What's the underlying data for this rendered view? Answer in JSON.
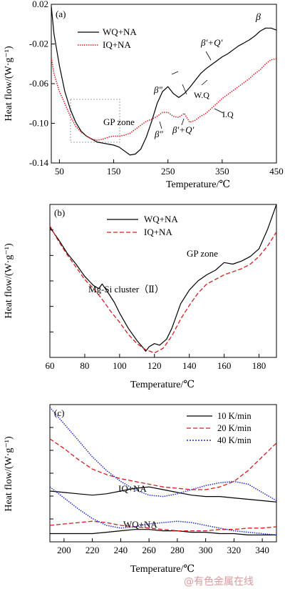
{
  "figure": {
    "watermark": "@有色金属在线"
  },
  "chart_data": [
    {
      "id": "a",
      "panel_label": "(a)",
      "type": "line",
      "xlabel": "Temperature/℃",
      "ylabel": "Heat flow/(W·g⁻¹)",
      "xlim": [
        35,
        450
      ],
      "ylim": [
        -0.14,
        0.02
      ],
      "xticks": [
        50,
        150,
        250,
        350,
        450
      ],
      "yticks": [
        0.02,
        -0.02,
        -0.06,
        -0.1,
        -0.14
      ],
      "ytick_labels": [
        "0.02",
        "-0.02",
        "-0.06",
        "-0.10",
        "-0.14"
      ],
      "legend_position": "top-left",
      "series": [
        {
          "name": "WQ+NA",
          "color": "#000000",
          "dash": "solid",
          "x": [
            35,
            40,
            50,
            60,
            70,
            80,
            90,
            100,
            110,
            120,
            130,
            140,
            150,
            160,
            170,
            180,
            190,
            200,
            210,
            220,
            230,
            240,
            250,
            260,
            270,
            280,
            290,
            300,
            310,
            320,
            330,
            340,
            350,
            360,
            370,
            380,
            390,
            400,
            410,
            420,
            430,
            440,
            450
          ],
          "y": [
            0.018,
            -0.01,
            -0.042,
            -0.068,
            -0.086,
            -0.099,
            -0.108,
            -0.113,
            -0.116,
            -0.119,
            -0.12,
            -0.121,
            -0.122,
            -0.124,
            -0.128,
            -0.132,
            -0.131,
            -0.126,
            -0.114,
            -0.098,
            -0.08,
            -0.068,
            -0.063,
            -0.07,
            -0.074,
            -0.07,
            -0.064,
            -0.057,
            -0.05,
            -0.045,
            -0.041,
            -0.037,
            -0.033,
            -0.03,
            -0.026,
            -0.022,
            -0.019,
            -0.016,
            -0.012,
            -0.007,
            -0.004,
            -0.004,
            -0.006
          ]
        },
        {
          "name": "IQ+NA",
          "color": "#d71d1d",
          "dash": "dotted",
          "x": [
            35,
            40,
            50,
            60,
            70,
            80,
            90,
            100,
            110,
            120,
            130,
            140,
            150,
            160,
            170,
            180,
            190,
            200,
            210,
            220,
            230,
            240,
            250,
            260,
            270,
            280,
            290,
            300,
            310,
            320,
            330,
            340,
            350,
            360,
            370,
            380,
            390,
            400,
            410,
            420,
            430,
            440,
            450
          ],
          "y": [
            -0.034,
            -0.05,
            -0.068,
            -0.08,
            -0.093,
            -0.103,
            -0.109,
            -0.113,
            -0.116,
            -0.117,
            -0.116,
            -0.114,
            -0.113,
            -0.113,
            -0.112,
            -0.11,
            -0.106,
            -0.102,
            -0.098,
            -0.096,
            -0.093,
            -0.089,
            -0.089,
            -0.093,
            -0.094,
            -0.09,
            -0.099,
            -0.097,
            -0.093,
            -0.09,
            -0.085,
            -0.08,
            -0.075,
            -0.071,
            -0.067,
            -0.063,
            -0.059,
            -0.055,
            -0.05,
            -0.046,
            -0.04,
            -0.036,
            -0.035
          ]
        }
      ],
      "annotations": [
        "β",
        "β′+Q′",
        "β″",
        "W.Q",
        "GP zone",
        "I.Q",
        "β″",
        "β′+Q′"
      ]
    },
    {
      "id": "b",
      "panel_label": "(b)",
      "type": "line",
      "xlabel": "Temperature/℃",
      "ylabel": "Heat flow/(W·g⁻¹)",
      "xlim": [
        60,
        190
      ],
      "ylim": [
        0,
        100
      ],
      "xticks": [
        60,
        80,
        100,
        120,
        140,
        160,
        180
      ],
      "yticks_unlabeled": 5,
      "legend_position": "top-left",
      "series": [
        {
          "name": "WQ+NA",
          "color": "#000000",
          "dash": "solid",
          "x": [
            60,
            65,
            70,
            75,
            80,
            85,
            88,
            90,
            93,
            97,
            100,
            105,
            110,
            113,
            115,
            117,
            120,
            123,
            127,
            130,
            135,
            140,
            145,
            150,
            155,
            158,
            160,
            165,
            170,
            175,
            180,
            185,
            190
          ],
          "y": [
            85,
            77,
            68,
            61,
            53,
            47,
            45,
            48,
            43,
            36,
            29,
            19,
            11,
            7,
            4,
            7,
            9,
            8,
            12,
            19,
            35,
            44,
            50,
            54,
            57,
            60,
            62,
            61,
            63,
            66,
            71,
            84,
            100
          ]
        },
        {
          "name": "IQ+NA",
          "color": "#d71d1d",
          "dash": "dashed",
          "x": [
            60,
            65,
            70,
            75,
            80,
            85,
            90,
            95,
            100,
            105,
            110,
            115,
            120,
            125,
            130,
            135,
            140,
            145,
            150,
            155,
            160,
            165,
            170,
            175,
            180,
            185,
            190
          ],
          "y": [
            86,
            76,
            67,
            59,
            51,
            45,
            38,
            30,
            23,
            15,
            9,
            5,
            3,
            6,
            14,
            25,
            34,
            42,
            48,
            51,
            54,
            56,
            58,
            61,
            66,
            73,
            82
          ]
        }
      ],
      "annotations": [
        "GP zone",
        "Mg-Si cluster（Ⅱ）"
      ]
    },
    {
      "id": "c",
      "panel_label": "(c)",
      "type": "line",
      "xlabel": "Temperature/℃",
      "ylabel": "Heat flow/(W·g⁻¹)",
      "xlim": [
        190,
        350
      ],
      "ylim": [
        0,
        100
      ],
      "xticks": [
        200,
        220,
        240,
        260,
        280,
        300,
        320,
        340
      ],
      "yticks_unlabeled": 5,
      "legend_position": "top-right",
      "series": [
        {
          "name": "10 K/min",
          "color": "#000000",
          "dash": "solid",
          "x": [
            190,
            200,
            210,
            220,
            230,
            240,
            250,
            260,
            270,
            280,
            290,
            300,
            310,
            320,
            330,
            340,
            350
          ],
          "y": [
            37,
            36,
            35,
            34,
            35,
            37,
            39,
            40,
            38,
            36,
            34,
            33,
            33,
            32,
            31,
            30,
            29
          ]
        },
        {
          "name": "20 K/min",
          "color": "#d71d1d",
          "dash": "dashed",
          "x": [
            190,
            200,
            210,
            220,
            230,
            240,
            250,
            260,
            270,
            280,
            290,
            300,
            310,
            320,
            330,
            340,
            350
          ],
          "y": [
            75,
            68,
            60,
            53,
            49,
            46,
            44,
            42,
            40,
            39,
            38,
            38,
            40,
            44,
            52,
            62,
            72
          ]
        },
        {
          "name": "40 K/min",
          "color": "#1e2bd0",
          "dash": "dotted",
          "x": [
            190,
            200,
            210,
            220,
            230,
            240,
            250,
            260,
            270,
            280,
            290,
            300,
            310,
            320,
            330,
            340,
            350
          ],
          "y": [
            98,
            86,
            74,
            62,
            52,
            44,
            38,
            34,
            33,
            35,
            38,
            41,
            43,
            44,
            42,
            36,
            30
          ]
        },
        {
          "name": "10 K/min",
          "color": "#000000",
          "dash": "solid",
          "x": [
            190,
            200,
            210,
            220,
            230,
            240,
            250,
            260,
            270,
            280,
            290,
            300,
            310,
            320,
            330,
            340,
            350
          ],
          "y": [
            6,
            6,
            6,
            6,
            7,
            8,
            9,
            9,
            8,
            8,
            7,
            7,
            6,
            6,
            5,
            5,
            5
          ]
        },
        {
          "name": "20 K/min",
          "color": "#d71d1d",
          "dash": "dashed",
          "x": [
            190,
            200,
            210,
            220,
            230,
            240,
            250,
            260,
            270,
            280,
            290,
            300,
            310,
            320,
            330,
            340,
            350
          ],
          "y": [
            12,
            13,
            14,
            15,
            14,
            12,
            11,
            10,
            9,
            8,
            8,
            8,
            9,
            9,
            10,
            10,
            11
          ]
        },
        {
          "name": "40 K/min",
          "color": "#1e2bd0",
          "dash": "dotted",
          "x": [
            190,
            200,
            210,
            220,
            230,
            240,
            250,
            260,
            270,
            280,
            290,
            300,
            310,
            320,
            330,
            340,
            350
          ],
          "y": [
            40,
            32,
            24,
            17,
            12,
            10,
            11,
            13,
            14,
            15,
            14,
            12,
            10,
            8,
            7,
            6,
            5
          ]
        }
      ],
      "annotations": [
        "IQ+NA",
        "WQ+NA"
      ]
    }
  ]
}
